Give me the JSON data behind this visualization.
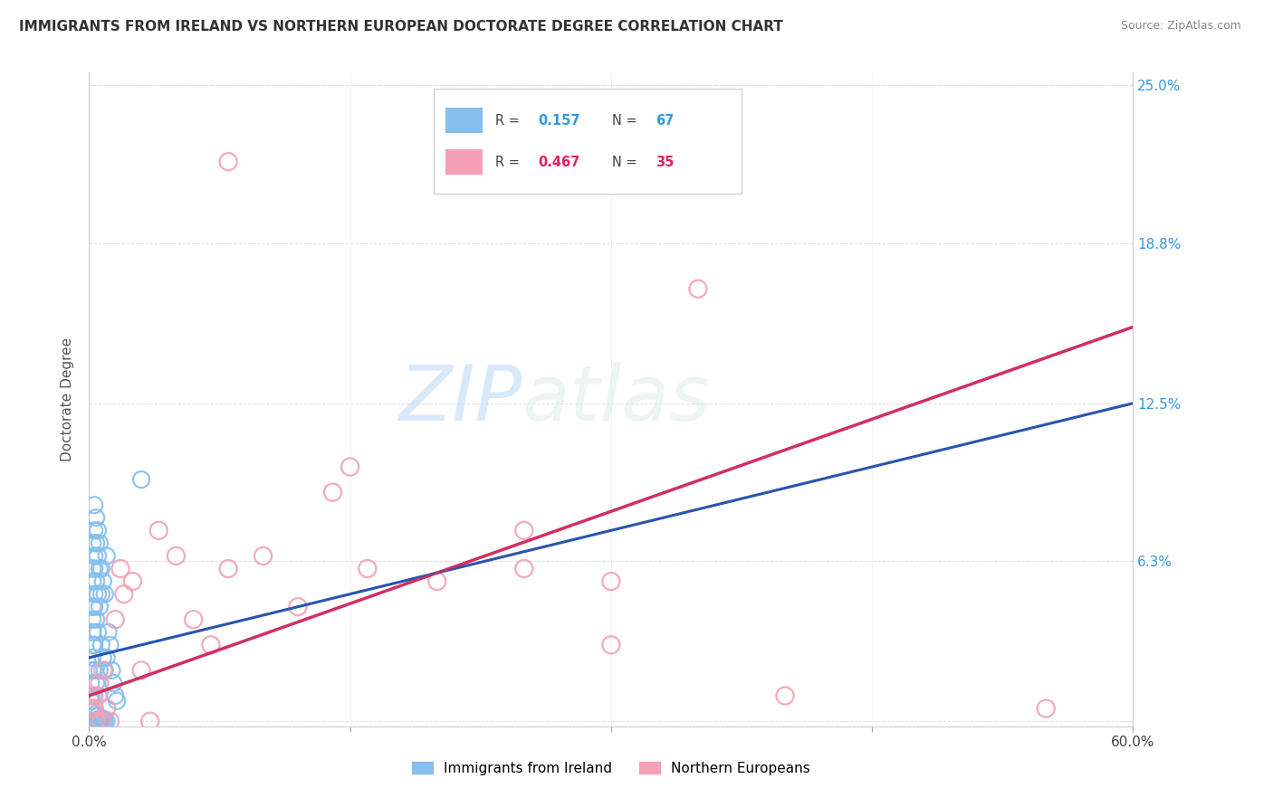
{
  "title": "IMMIGRANTS FROM IRELAND VS NORTHERN EUROPEAN DOCTORATE DEGREE CORRELATION CHART",
  "source": "Source: ZipAtlas.com",
  "ylabel": "Doctorate Degree",
  "xlim": [
    0.0,
    0.6
  ],
  "ylim": [
    -0.002,
    0.255
  ],
  "color_ireland": "#85BFED",
  "color_northern": "#F4A0B5",
  "line_color_ireland": "#2855B0",
  "line_color_northern": "#D03060",
  "watermark_zip": "ZIP",
  "watermark_atlas": "atlas",
  "background_color": "#ffffff",
  "ytick_positions": [
    0.0,
    0.063,
    0.125,
    0.188,
    0.25
  ],
  "ytick_labels": [
    "",
    "6.3%",
    "12.5%",
    "18.8%",
    "25.0%"
  ],
  "xtick_positions": [
    0.0,
    0.15,
    0.3,
    0.45,
    0.6
  ],
  "xtick_labels": [
    "0.0%",
    "",
    "",
    "",
    "60.0%"
  ],
  "legend_label_ireland": "Immigrants from Ireland",
  "legend_label_northern": "Northern Europeans",
  "n_ireland": 67,
  "n_northern": 35,
  "r_ireland": 0.157,
  "r_northern": 0.467,
  "ireland_x": [
    0.001,
    0.001,
    0.001,
    0.002,
    0.002,
    0.002,
    0.002,
    0.002,
    0.002,
    0.002,
    0.002,
    0.002,
    0.002,
    0.003,
    0.003,
    0.003,
    0.003,
    0.003,
    0.003,
    0.003,
    0.003,
    0.003,
    0.004,
    0.004,
    0.004,
    0.004,
    0.004,
    0.005,
    0.005,
    0.005,
    0.005,
    0.006,
    0.006,
    0.006,
    0.006,
    0.007,
    0.007,
    0.007,
    0.008,
    0.008,
    0.009,
    0.009,
    0.01,
    0.01,
    0.011,
    0.012,
    0.013,
    0.014,
    0.015,
    0.016,
    0.002,
    0.003,
    0.004,
    0.004,
    0.005,
    0.006,
    0.007,
    0.008,
    0.009,
    0.01,
    0.003,
    0.004,
    0.005,
    0.006,
    0.007,
    0.008,
    0.03
  ],
  "ireland_y": [
    0.01,
    0.015,
    0.008,
    0.07,
    0.06,
    0.055,
    0.045,
    0.04,
    0.035,
    0.03,
    0.025,
    0.02,
    0.005,
    0.085,
    0.075,
    0.065,
    0.06,
    0.05,
    0.045,
    0.03,
    0.02,
    0.01,
    0.08,
    0.07,
    0.055,
    0.04,
    0.015,
    0.075,
    0.065,
    0.05,
    0.035,
    0.07,
    0.06,
    0.045,
    0.02,
    0.06,
    0.05,
    0.03,
    0.055,
    0.025,
    0.05,
    0.02,
    0.065,
    0.025,
    0.035,
    0.03,
    0.02,
    0.015,
    0.01,
    0.008,
    0.0,
    0.0,
    0.0,
    0.003,
    0.0,
    0.0,
    0.0,
    0.0,
    0.0,
    0.0,
    0.0,
    0.0,
    0.002,
    0.001,
    0.001,
    0.001,
    0.095
  ],
  "northern_x": [
    0.001,
    0.002,
    0.003,
    0.004,
    0.005,
    0.006,
    0.007,
    0.008,
    0.01,
    0.012,
    0.015,
    0.018,
    0.02,
    0.025,
    0.03,
    0.035,
    0.04,
    0.05,
    0.06,
    0.07,
    0.08,
    0.1,
    0.12,
    0.14,
    0.16,
    0.2,
    0.25,
    0.3,
    0.35,
    0.4,
    0.15,
    0.08,
    0.3,
    0.25,
    0.55
  ],
  "northern_y": [
    0.005,
    0.01,
    0.005,
    0.0,
    0.01,
    0.015,
    0.0,
    0.02,
    0.005,
    0.0,
    0.04,
    0.06,
    0.05,
    0.055,
    0.02,
    0.0,
    0.075,
    0.065,
    0.04,
    0.03,
    0.22,
    0.065,
    0.045,
    0.09,
    0.06,
    0.055,
    0.075,
    0.03,
    0.17,
    0.01,
    0.1,
    0.06,
    0.055,
    0.06,
    0.005
  ]
}
